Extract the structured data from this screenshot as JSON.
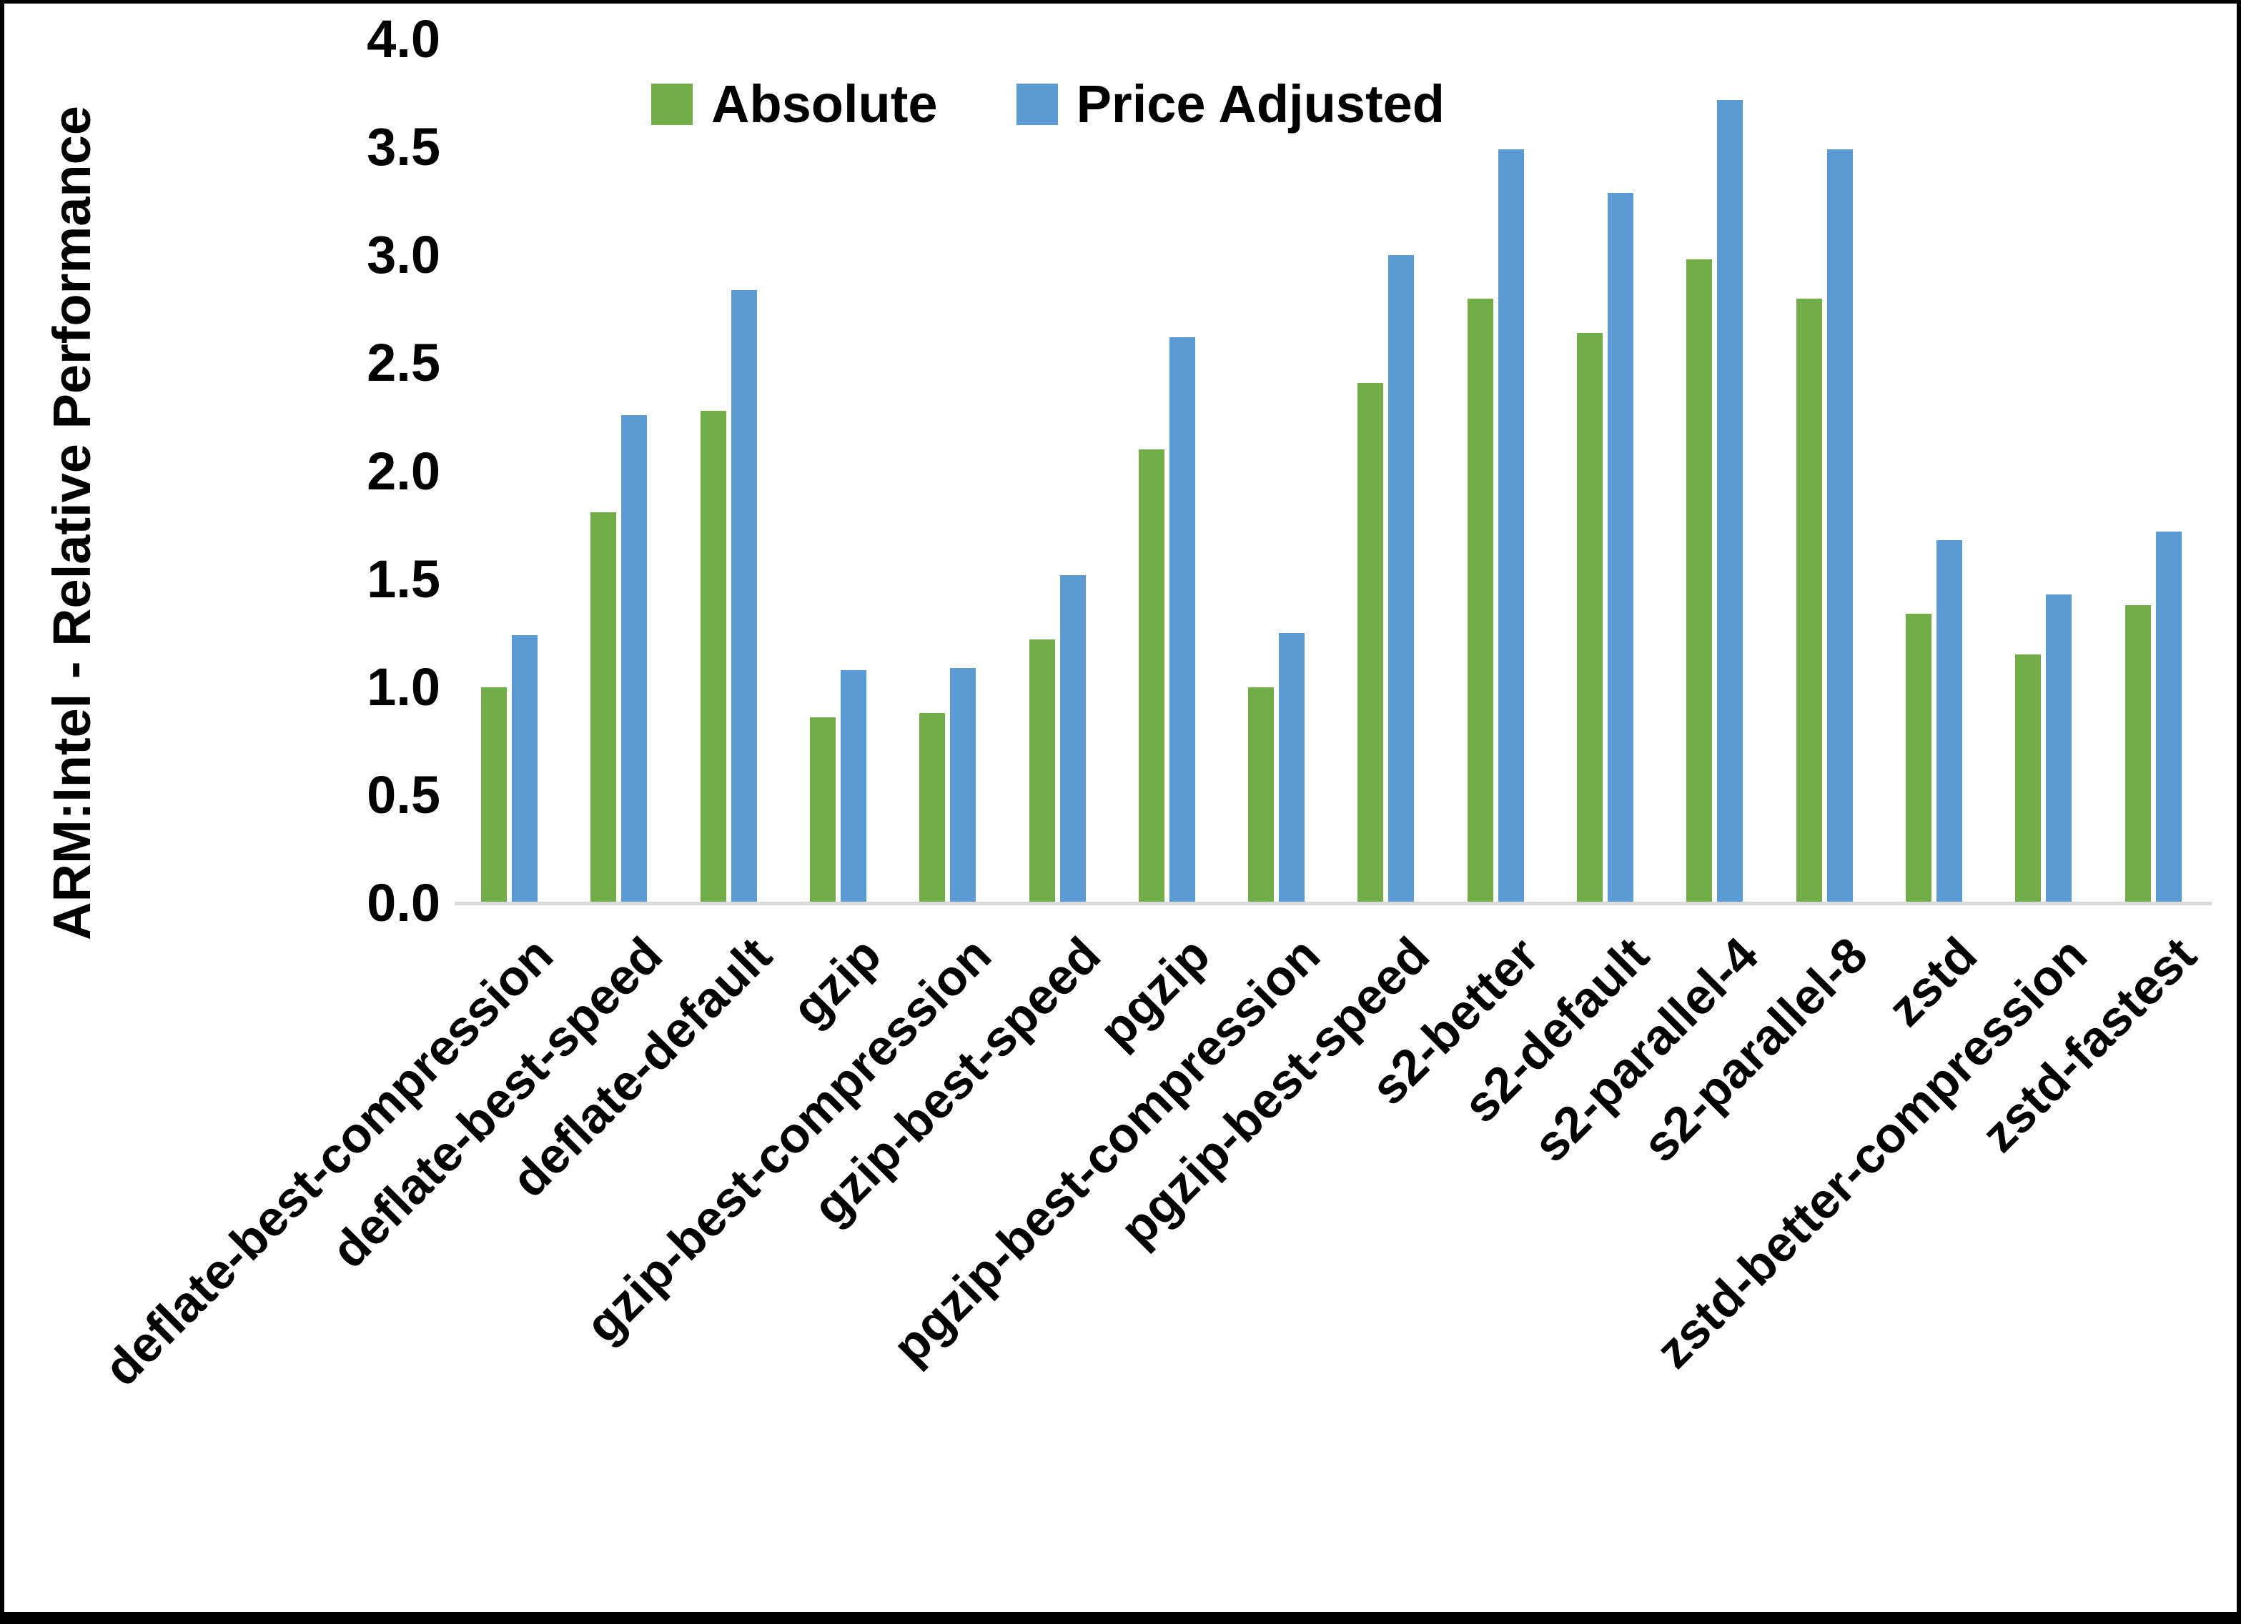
{
  "colors": {
    "background": "#FFFFFF",
    "frame": "#000000",
    "axis_line": "#D9D9D9",
    "text": "#000000",
    "series_absolute": "#70AD47",
    "series_price_adjusted": "#5B9BD5"
  },
  "chart_data": {
    "type": "bar",
    "title": "",
    "xlabel": "",
    "ylabel": "ARM:Intel - Relative Performance",
    "ylim": [
      0.0,
      4.0
    ],
    "ytick_step": 0.5,
    "ytick_labels": [
      "0.0",
      "0.5",
      "1.0",
      "1.5",
      "2.0",
      "2.5",
      "3.0",
      "3.5",
      "4.0"
    ],
    "grid": false,
    "legend_position": "top-center",
    "categories": [
      "deflate-best-compression",
      "deflate-best-speed",
      "deflate-default",
      "gzip",
      "gzip-best-compression",
      "gzip-best-speed",
      "pgzip",
      "pgzip-best-compression",
      "pgzip-best-speed",
      "s2-better",
      "s2-default",
      "s2-parallel-4",
      "s2-parallel-8",
      "zstd",
      "zstd-better-compression",
      "zstd-fastest"
    ],
    "series": [
      {
        "name": "Absolute",
        "color": "#70AD47",
        "values": [
          1.0,
          1.81,
          2.28,
          0.86,
          0.88,
          1.22,
          2.1,
          1.0,
          2.41,
          2.8,
          2.64,
          2.98,
          2.8,
          1.34,
          1.15,
          1.38
        ]
      },
      {
        "name": "Price Adjusted",
        "color": "#5B9BD5",
        "values": [
          1.24,
          2.26,
          2.84,
          1.08,
          1.09,
          1.52,
          2.62,
          1.25,
          3.0,
          3.49,
          3.29,
          3.72,
          3.49,
          1.68,
          1.43,
          1.72
        ]
      }
    ]
  }
}
